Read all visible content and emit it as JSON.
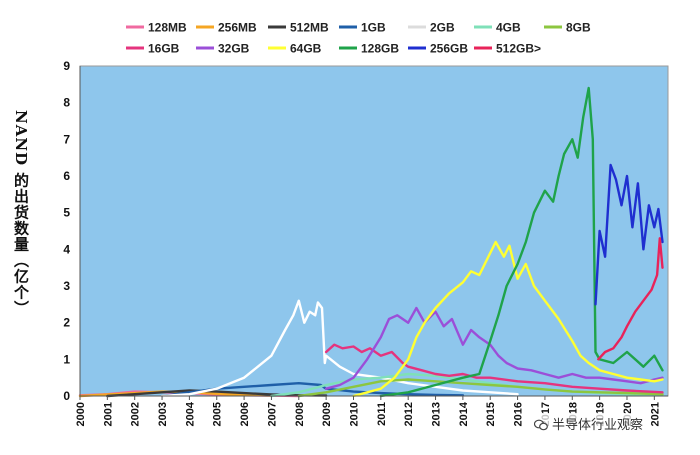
{
  "chart_data": {
    "type": "line",
    "title": "",
    "ylabel": "NAND 的出货数量（亿个）",
    "xlabel": "",
    "ylim": [
      0,
      9
    ],
    "xlim": [
      2000,
      2021.5
    ],
    "yticks": [
      "0",
      "1",
      "2",
      "3",
      "4",
      "5",
      "6",
      "7",
      "8",
      "9"
    ],
    "xticks": [
      "2000",
      "2001",
      "2002",
      "2003",
      "2004",
      "2005",
      "2006",
      "2007",
      "2008",
      "2009",
      "2010",
      "2011",
      "2012",
      "2013",
      "2014",
      "2015",
      "2016",
      "2017",
      "2018",
      "2019",
      "2020",
      "2021"
    ],
    "grid": false,
    "legend_position": "top",
    "plot_background": "#8ec6ec",
    "series": [
      {
        "name": "128MB",
        "color": "#f06aa0",
        "points": [
          [
            2000,
            0.02
          ],
          [
            2001,
            0.05
          ],
          [
            2002,
            0.12
          ],
          [
            2003,
            0.1
          ],
          [
            2004,
            0.08
          ],
          [
            2005,
            0.04
          ],
          [
            2006,
            0.02
          ],
          [
            2007,
            0.01
          ],
          [
            2008,
            0.0
          ]
        ]
      },
      {
        "name": "256MB",
        "color": "#f5a623",
        "points": [
          [
            2000,
            0.0
          ],
          [
            2001,
            0.04
          ],
          [
            2002,
            0.08
          ],
          [
            2003,
            0.12
          ],
          [
            2004,
            0.1
          ],
          [
            2005,
            0.06
          ],
          [
            2006,
            0.03
          ],
          [
            2007,
            0.01
          ]
        ]
      },
      {
        "name": "512MB",
        "color": "#3a3a3a",
        "points": [
          [
            2001,
            0.0
          ],
          [
            2002,
            0.05
          ],
          [
            2003,
            0.1
          ],
          [
            2004,
            0.15
          ],
          [
            2005,
            0.12
          ],
          [
            2006,
            0.08
          ],
          [
            2007,
            0.04
          ],
          [
            2008,
            0.02
          ],
          [
            2009,
            0.01
          ]
        ]
      },
      {
        "name": "1GB",
        "color": "#1f5fa8",
        "points": [
          [
            2003,
            0.0
          ],
          [
            2004,
            0.1
          ],
          [
            2005,
            0.2
          ],
          [
            2006,
            0.25
          ],
          [
            2007,
            0.3
          ],
          [
            2008,
            0.35
          ],
          [
            2008.8,
            0.3
          ],
          [
            2009,
            0.2
          ],
          [
            2010,
            0.12
          ],
          [
            2011,
            0.08
          ],
          [
            2012,
            0.05
          ],
          [
            2013,
            0.03
          ],
          [
            2014,
            0.02
          ]
        ]
      },
      {
        "name": "2GB",
        "color": "#ffffff",
        "points": [
          [
            2003,
            0.0
          ],
          [
            2004,
            0.05
          ],
          [
            2005,
            0.2
          ],
          [
            2006,
            0.5
          ],
          [
            2006.5,
            0.8
          ],
          [
            2007,
            1.1
          ],
          [
            2007.5,
            1.8
          ],
          [
            2007.8,
            2.2
          ],
          [
            2008,
            2.6
          ],
          [
            2008.2,
            2.0
          ],
          [
            2008.4,
            2.3
          ],
          [
            2008.6,
            2.2
          ],
          [
            2008.7,
            2.55
          ],
          [
            2008.85,
            2.4
          ],
          [
            2008.95,
            0.9
          ],
          [
            2009,
            1.1
          ],
          [
            2009.5,
            0.8
          ],
          [
            2010,
            0.6
          ],
          [
            2010.5,
            0.55
          ],
          [
            2011,
            0.5
          ],
          [
            2012,
            0.35
          ],
          [
            2013,
            0.25
          ],
          [
            2014,
            0.15
          ],
          [
            2015,
            0.1
          ],
          [
            2016,
            0.05
          ]
        ]
      },
      {
        "name": "4GB",
        "color": "#7fe0b8",
        "points": [
          [
            2007,
            0.0
          ],
          [
            2008,
            0.1
          ],
          [
            2009,
            0.3
          ],
          [
            2010,
            0.45
          ],
          [
            2011,
            0.5
          ],
          [
            2012,
            0.6
          ],
          [
            2013,
            0.55
          ],
          [
            2014,
            0.45
          ],
          [
            2015,
            0.35
          ],
          [
            2016,
            0.25
          ],
          [
            2017,
            0.18
          ],
          [
            2018,
            0.12
          ],
          [
            2019,
            0.08
          ],
          [
            2020,
            0.05
          ],
          [
            2021.3,
            0.03
          ]
        ]
      },
      {
        "name": "8GB",
        "color": "#8cc63f",
        "points": [
          [
            2008,
            0.0
          ],
          [
            2009,
            0.1
          ],
          [
            2010,
            0.25
          ],
          [
            2011,
            0.4
          ],
          [
            2012,
            0.45
          ],
          [
            2013,
            0.4
          ],
          [
            2014,
            0.35
          ],
          [
            2015,
            0.3
          ],
          [
            2016,
            0.25
          ],
          [
            2017,
            0.18
          ],
          [
            2018,
            0.12
          ],
          [
            2019,
            0.1
          ],
          [
            2020,
            0.08
          ],
          [
            2021.3,
            0.05
          ]
        ]
      },
      {
        "name": "16GB",
        "color": "#e5347e",
        "points": [
          [
            2009,
            1.2
          ],
          [
            2009.3,
            1.4
          ],
          [
            2009.6,
            1.3
          ],
          [
            2010,
            1.35
          ],
          [
            2010.3,
            1.2
          ],
          [
            2010.6,
            1.3
          ],
          [
            2011,
            1.1
          ],
          [
            2011.4,
            1.2
          ],
          [
            2011.8,
            0.9
          ],
          [
            2012,
            0.8
          ],
          [
            2012.5,
            0.7
          ],
          [
            2013,
            0.6
          ],
          [
            2013.5,
            0.55
          ],
          [
            2014,
            0.6
          ],
          [
            2014.5,
            0.5
          ],
          [
            2015,
            0.5
          ],
          [
            2016,
            0.4
          ],
          [
            2017,
            0.35
          ],
          [
            2018,
            0.25
          ],
          [
            2019,
            0.2
          ],
          [
            2020,
            0.15
          ],
          [
            2021.3,
            0.1
          ]
        ]
      },
      {
        "name": "32GB",
        "color": "#9b4fd8",
        "points": [
          [
            2009,
            0.2
          ],
          [
            2009.5,
            0.3
          ],
          [
            2010,
            0.5
          ],
          [
            2010.5,
            1.0
          ],
          [
            2011,
            1.6
          ],
          [
            2011.3,
            2.1
          ],
          [
            2011.6,
            2.2
          ],
          [
            2012,
            2.0
          ],
          [
            2012.3,
            2.4
          ],
          [
            2012.6,
            2.0
          ],
          [
            2013,
            2.3
          ],
          [
            2013.3,
            1.9
          ],
          [
            2013.6,
            2.1
          ],
          [
            2014,
            1.4
          ],
          [
            2014.3,
            1.8
          ],
          [
            2014.6,
            1.6
          ],
          [
            2015,
            1.4
          ],
          [
            2015.3,
            1.1
          ],
          [
            2015.6,
            0.9
          ],
          [
            2016,
            0.75
          ],
          [
            2016.5,
            0.7
          ],
          [
            2017,
            0.6
          ],
          [
            2017.5,
            0.5
          ],
          [
            2018,
            0.6
          ],
          [
            2018.5,
            0.5
          ],
          [
            2019,
            0.5
          ],
          [
            2019.5,
            0.45
          ],
          [
            2020,
            0.4
          ],
          [
            2020.5,
            0.35
          ],
          [
            2021,
            0.45
          ],
          [
            2021.3,
            0.5
          ]
        ]
      },
      {
        "name": "64GB",
        "color": "#ffff33",
        "points": [
          [
            2010,
            0.0
          ],
          [
            2011,
            0.2
          ],
          [
            2011.5,
            0.5
          ],
          [
            2012,
            1.0
          ],
          [
            2012.3,
            1.6
          ],
          [
            2012.6,
            2.0
          ],
          [
            2013,
            2.4
          ],
          [
            2013.5,
            2.8
          ],
          [
            2014,
            3.1
          ],
          [
            2014.3,
            3.4
          ],
          [
            2014.6,
            3.3
          ],
          [
            2015,
            3.9
          ],
          [
            2015.2,
            4.2
          ],
          [
            2015.5,
            3.8
          ],
          [
            2015.7,
            4.1
          ],
          [
            2016,
            3.2
          ],
          [
            2016.3,
            3.6
          ],
          [
            2016.6,
            3.0
          ],
          [
            2017,
            2.6
          ],
          [
            2017.5,
            2.1
          ],
          [
            2018,
            1.5
          ],
          [
            2018.3,
            1.1
          ],
          [
            2018.6,
            0.9
          ],
          [
            2019,
            0.7
          ],
          [
            2019.5,
            0.6
          ],
          [
            2020,
            0.5
          ],
          [
            2020.5,
            0.45
          ],
          [
            2021,
            0.4
          ],
          [
            2021.3,
            0.45
          ]
        ]
      },
      {
        "name": "128GB",
        "color": "#1fa34a",
        "points": [
          [
            2011,
            0.0
          ],
          [
            2012,
            0.1
          ],
          [
            2013,
            0.3
          ],
          [
            2014,
            0.5
          ],
          [
            2014.6,
            0.6
          ],
          [
            2015,
            1.5
          ],
          [
            2015.3,
            2.2
          ],
          [
            2015.6,
            3.0
          ],
          [
            2016,
            3.6
          ],
          [
            2016.3,
            4.2
          ],
          [
            2016.6,
            5.0
          ],
          [
            2017,
            5.6
          ],
          [
            2017.3,
            5.3
          ],
          [
            2017.5,
            6.0
          ],
          [
            2017.7,
            6.6
          ],
          [
            2018,
            7.0
          ],
          [
            2018.2,
            6.5
          ],
          [
            2018.4,
            7.6
          ],
          [
            2018.6,
            8.4
          ],
          [
            2018.75,
            7.0
          ],
          [
            2018.85,
            1.2
          ],
          [
            2019,
            1.0
          ],
          [
            2019.5,
            0.9
          ],
          [
            2020,
            1.2
          ],
          [
            2020.3,
            1.0
          ],
          [
            2020.6,
            0.8
          ],
          [
            2021,
            1.1
          ],
          [
            2021.3,
            0.7
          ]
        ]
      },
      {
        "name": "256GB",
        "color": "#1f2fd0",
        "points": [
          [
            2018.85,
            2.5
          ],
          [
            2019,
            4.5
          ],
          [
            2019.2,
            3.8
          ],
          [
            2019.4,
            6.3
          ],
          [
            2019.6,
            5.9
          ],
          [
            2019.8,
            5.2
          ],
          [
            2020,
            6.0
          ],
          [
            2020.2,
            4.6
          ],
          [
            2020.4,
            5.8
          ],
          [
            2020.6,
            4.0
          ],
          [
            2020.8,
            5.2
          ],
          [
            2021,
            4.6
          ],
          [
            2021.15,
            5.1
          ],
          [
            2021.3,
            4.2
          ]
        ]
      },
      {
        "name": "512GB>",
        "color": "#e8235a",
        "points": [
          [
            2018.95,
            1.0
          ],
          [
            2019.2,
            1.2
          ],
          [
            2019.5,
            1.3
          ],
          [
            2019.8,
            1.6
          ],
          [
            2020,
            1.9
          ],
          [
            2020.3,
            2.3
          ],
          [
            2020.6,
            2.6
          ],
          [
            2020.9,
            2.9
          ],
          [
            2021.1,
            3.3
          ],
          [
            2021.2,
            4.3
          ],
          [
            2021.3,
            3.5
          ]
        ]
      }
    ]
  },
  "watermark": {
    "text": "半导体行业观察"
  }
}
